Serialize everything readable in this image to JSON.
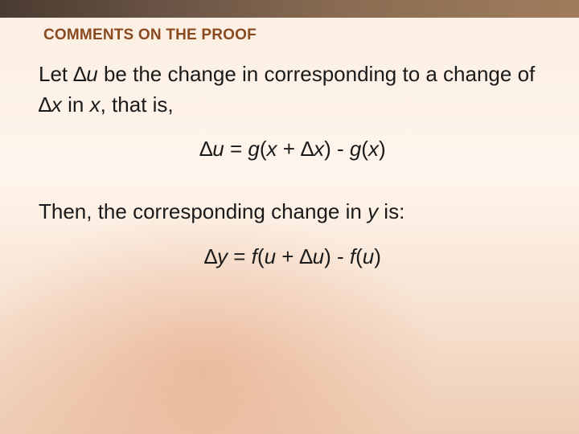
{
  "header": {
    "title": "COMMENTS ON THE PROOF"
  },
  "body": {
    "p1_a": "Let ∆",
    "p1_u": "u",
    "p1_b": " be the change in corresponding to a change of ∆",
    "p1_x": "x",
    "p1_c": " in ",
    "p1_x2": "x",
    "p1_d": ", that is,",
    "eq1_a": "∆",
    "eq1_u": "u",
    "eq1_b": " = ",
    "eq1_g1": "g",
    "eq1_c": "(",
    "eq1_x1": "x",
    "eq1_d": " + ∆",
    "eq1_x2": "x",
    "eq1_e": ") - ",
    "eq1_g2": "g",
    "eq1_f": "(",
    "eq1_x3": "x",
    "eq1_g": ")",
    "p2_a": "Then, the corresponding change in ",
    "p2_y": "y",
    "p2_b": " is:",
    "eq2_a": "∆",
    "eq2_y": "y",
    "eq2_b": " = ",
    "eq2_f1": "f",
    "eq2_c": "(",
    "eq2_u1": "u",
    "eq2_d": " + ∆",
    "eq2_u2": "u",
    "eq2_e": ") - ",
    "eq2_f2": "f",
    "eq2_f": "(",
    "eq2_u3": "u",
    "eq2_g": ")"
  },
  "style": {
    "header_color": "#8a4a1f",
    "text_color": "#1a1a1a",
    "topbar_gradient": [
      "#4a3b30",
      "#a07c5c"
    ],
    "bg_gradient": [
      "#fbeee3",
      "#eecdb5"
    ],
    "header_fontsize": 19,
    "body_fontsize": 26
  }
}
